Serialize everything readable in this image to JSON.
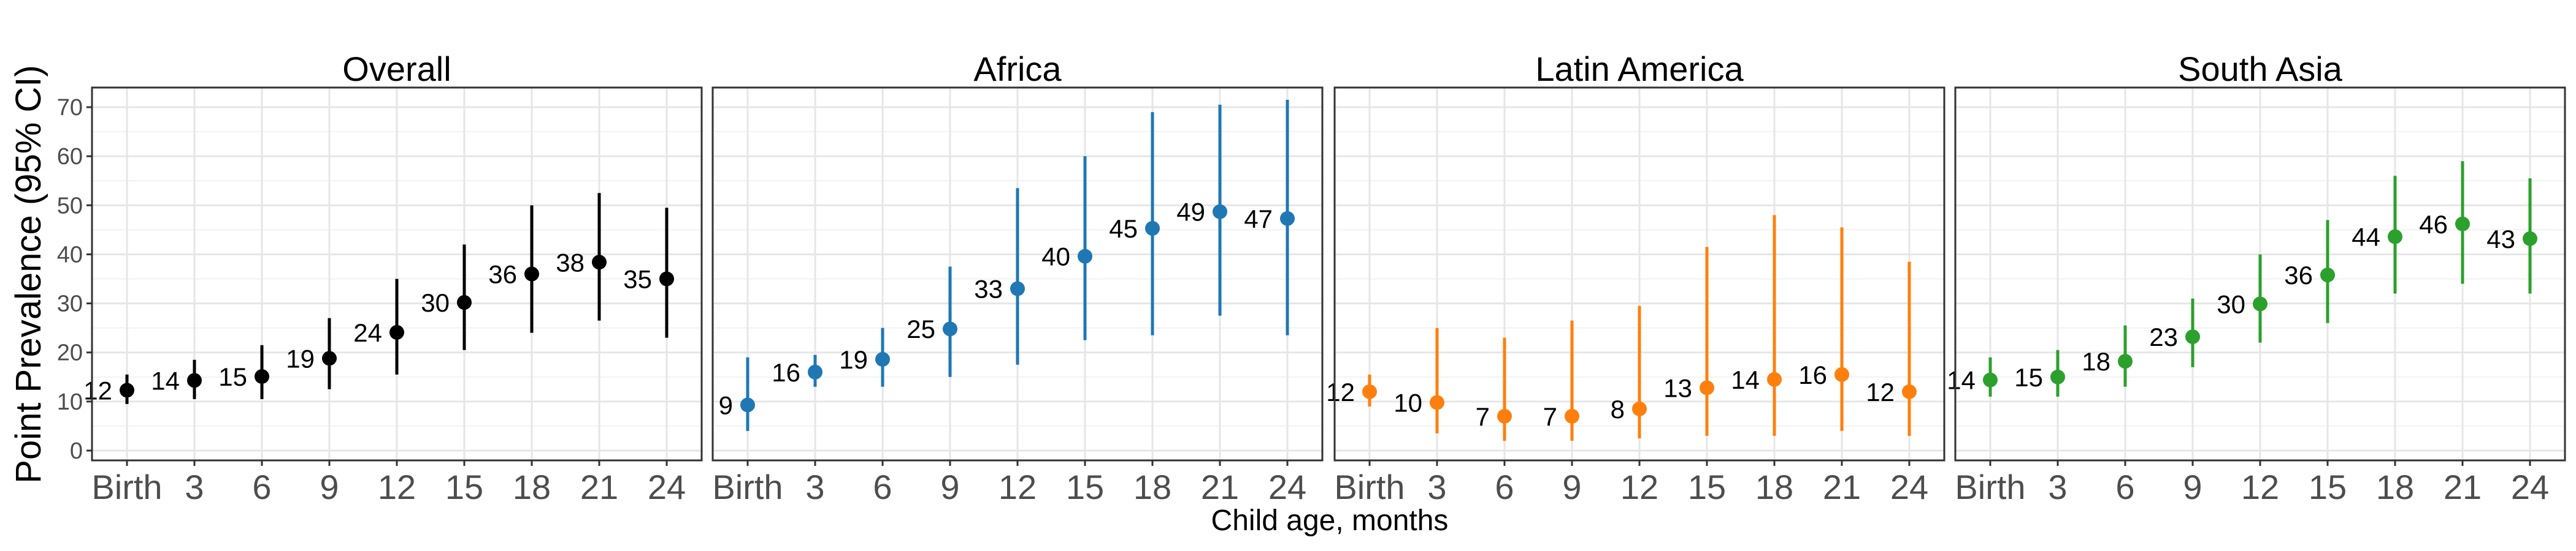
{
  "chart_data": {
    "type": "scatter",
    "subtype": "point-with-errorbars, faceted",
    "ylabel": "Point Prevalence (95% CI)",
    "xlabel": "Child age, months",
    "categories": [
      "Birth",
      "3",
      "6",
      "9",
      "12",
      "15",
      "18",
      "21",
      "24"
    ],
    "ylim": [
      -2,
      74
    ],
    "yticks": [
      0,
      10,
      20,
      30,
      40,
      50,
      60,
      70
    ],
    "grid": true,
    "legend": "none",
    "panels": [
      {
        "title": "Overall",
        "color": "#000000",
        "values": [
          12.3,
          14.3,
          15.1,
          18.8,
          24.1,
          30.2,
          36.0,
          38.4,
          35.0
        ],
        "lower": [
          9.5,
          10.5,
          10.5,
          12.5,
          15.5,
          20.5,
          24.0,
          26.5,
          23.0
        ],
        "upper": [
          15.5,
          18.5,
          21.5,
          27.0,
          35.0,
          42.0,
          50.0,
          52.5,
          49.5
        ],
        "labels": [
          "12",
          "14",
          "15",
          "19",
          "24",
          "30",
          "36",
          "38",
          "35"
        ]
      },
      {
        "title": "Africa",
        "color": "#1f77b4",
        "values": [
          9.3,
          16.0,
          18.6,
          24.8,
          33.0,
          39.6,
          45.3,
          48.7,
          47.3
        ],
        "lower": [
          4.0,
          13.0,
          13.0,
          15.0,
          17.5,
          22.5,
          23.5,
          27.5,
          23.5
        ],
        "upper": [
          19.0,
          19.5,
          25.0,
          37.5,
          53.5,
          60.0,
          69.0,
          70.5,
          71.5
        ],
        "labels": [
          "9",
          "16",
          "19",
          "25",
          "33",
          "40",
          "45",
          "49",
          "47"
        ]
      },
      {
        "title": "Latin America",
        "color": "#ff7f0e",
        "values": [
          12.0,
          9.8,
          7.0,
          7.0,
          8.5,
          12.8,
          14.5,
          15.5,
          12.0
        ],
        "lower": [
          9.0,
          3.5,
          2.0,
          2.0,
          2.5,
          3.0,
          3.0,
          4.0,
          3.0
        ],
        "upper": [
          15.5,
          25.0,
          23.0,
          26.5,
          29.5,
          41.5,
          48.0,
          45.5,
          38.5
        ],
        "labels": [
          "12",
          "10",
          "7",
          "7",
          "8",
          "13",
          "14",
          "16",
          "12"
        ]
      },
      {
        "title": "South Asia",
        "color": "#2ca02c",
        "values": [
          14.4,
          15.0,
          18.2,
          23.2,
          29.9,
          35.8,
          43.6,
          46.2,
          43.2
        ],
        "lower": [
          11.0,
          11.0,
          13.0,
          17.0,
          22.0,
          26.0,
          32.0,
          34.0,
          32.0
        ],
        "upper": [
          19.0,
          20.5,
          25.5,
          31.0,
          40.0,
          47.0,
          56.0,
          59.0,
          55.5
        ],
        "labels": [
          "14",
          "15",
          "18",
          "23",
          "30",
          "36",
          "44",
          "46",
          "43"
        ]
      }
    ]
  }
}
